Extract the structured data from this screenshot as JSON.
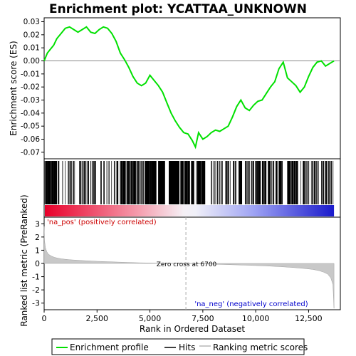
{
  "chart_data": {
    "type": "line",
    "title": "Enrichment plot: YCATTAA_UNKNOWN",
    "colors": {
      "enrichment_line": "#00e000",
      "hits": "#000000",
      "ranking_fill": "#c8c8c8",
      "pos_label": "#cc0000",
      "neg_label": "#0000cc",
      "zero_cross": "#aaaaaa"
    },
    "enrichment_panel": {
      "ylabel": "Enrichment score (ES)",
      "ylim": [
        -0.075,
        0.033
      ],
      "yticks": [
        0.03,
        0.02,
        0.01,
        0.0,
        -0.01,
        -0.02,
        -0.03,
        -0.04,
        -0.05,
        -0.06,
        -0.07
      ],
      "ytick_labels": [
        "0.03",
        "0.02",
        "0.01",
        "0.00",
        "-0.01",
        "-0.02",
        "-0.03",
        "-0.04",
        "-0.05",
        "-0.06",
        "-0.07"
      ],
      "series": [
        {
          "x": [
            0,
            150,
            300,
            450,
            600,
            800,
            1000,
            1200,
            1400,
            1600,
            1800,
            2000,
            2200,
            2400,
            2600,
            2800,
            3000,
            3200,
            3400,
            3600,
            3800,
            4000,
            4200,
            4400,
            4600,
            4800,
            5000,
            5200,
            5400,
            5600,
            5800,
            6000,
            6200,
            6400,
            6600,
            6800,
            7000,
            7150,
            7300,
            7500,
            7700,
            7900,
            8100,
            8300,
            8500,
            8700,
            8900,
            9100,
            9300,
            9500,
            9700,
            9900,
            10100,
            10300,
            10500,
            10700,
            10900,
            11100,
            11300,
            11500,
            11700,
            11900,
            12100,
            12300,
            12500,
            12700,
            12900,
            13100,
            13300,
            13500,
            13700
          ],
          "y": [
            0.0,
            0.006,
            0.009,
            0.012,
            0.017,
            0.021,
            0.025,
            0.026,
            0.024,
            0.022,
            0.024,
            0.026,
            0.022,
            0.021,
            0.024,
            0.026,
            0.025,
            0.021,
            0.015,
            0.006,
            0.001,
            -0.005,
            -0.012,
            -0.017,
            -0.019,
            -0.017,
            -0.011,
            -0.015,
            -0.019,
            -0.024,
            -0.032,
            -0.04,
            -0.046,
            -0.051,
            -0.055,
            -0.056,
            -0.061,
            -0.066,
            -0.055,
            -0.06,
            -0.058,
            -0.055,
            -0.053,
            -0.054,
            -0.052,
            -0.05,
            -0.043,
            -0.035,
            -0.03,
            -0.036,
            -0.038,
            -0.034,
            -0.031,
            -0.03,
            -0.025,
            -0.02,
            -0.016,
            -0.006,
            -0.001,
            -0.013,
            -0.016,
            -0.019,
            -0.024,
            -0.02,
            -0.012,
            -0.005,
            -0.001,
            0.0,
            -0.004,
            -0.002,
            0.0
          ]
        }
      ]
    },
    "hits_panel": {
      "hit_clusters": [
        [
          0,
          600,
          60
        ],
        [
          650,
          3200,
          55
        ],
        [
          3300,
          4700,
          90
        ],
        [
          4750,
          5300,
          70
        ],
        [
          5400,
          5700,
          90
        ],
        [
          5900,
          6400,
          120
        ],
        [
          6450,
          7100,
          60
        ],
        [
          7200,
          7600,
          55
        ],
        [
          7700,
          9100,
          30
        ],
        [
          9200,
          9350,
          50
        ],
        [
          9500,
          10250,
          35
        ],
        [
          10300,
          10900,
          40
        ],
        [
          10950,
          11300,
          25
        ],
        [
          11500,
          12000,
          45
        ],
        [
          12100,
          13000,
          30
        ],
        [
          13100,
          13700,
          25
        ]
      ]
    },
    "ranking_panel": {
      "ylabel": "Ranked list metric (PreRanked)",
      "ylim": [
        -3.5,
        3.5
      ],
      "yticks": [
        3,
        2,
        1,
        0,
        -1,
        -2,
        -3
      ],
      "ytick_labels": [
        "3",
        "2",
        "1",
        "0",
        "-1",
        "-2",
        "-3"
      ],
      "metric_x": [
        0,
        20,
        60,
        120,
        200,
        350,
        500,
        800,
        1200,
        1800,
        2500,
        3500,
        4500,
        5500,
        6700,
        7500,
        8500,
        9500,
        10500,
        11200,
        11800,
        12300,
        12700,
        13000,
        13200,
        13400,
        13550,
        13650,
        13700
      ],
      "metric_y": [
        2.8,
        1.7,
        1.2,
        0.9,
        0.7,
        0.55,
        0.45,
        0.35,
        0.28,
        0.22,
        0.16,
        0.1,
        0.05,
        0.02,
        0.0,
        -0.03,
        -0.08,
        -0.13,
        -0.19,
        -0.25,
        -0.31,
        -0.38,
        -0.45,
        -0.55,
        -0.65,
        -0.8,
        -1.1,
        -1.6,
        -3.4
      ],
      "zero_cross": 6700,
      "zero_cross_label": "Zero cross at 6700",
      "pos_label": "'na_pos' (positively correlated)",
      "neg_label": "'na_neg' (negatively correlated)"
    },
    "xaxis": {
      "xlabel": "Rank in Ordered Dataset",
      "xlim": [
        0,
        14000
      ],
      "xticks": [
        0,
        2500,
        5000,
        7500,
        10000,
        12500
      ],
      "xtick_labels": [
        "0",
        "2,500",
        "5,000",
        "7,500",
        "10,000",
        "12,500"
      ],
      "n_genes": 13700
    },
    "legend": {
      "placement": "bottom",
      "entries": [
        "Enrichment profile",
        "Hits",
        "Ranking metric scores"
      ]
    }
  }
}
